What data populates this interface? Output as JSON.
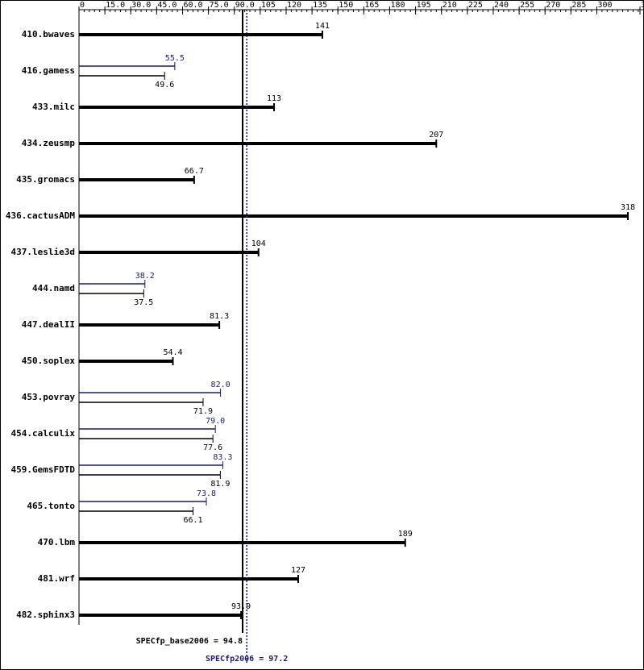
{
  "chart_data": {
    "type": "bar",
    "orientation": "horizontal",
    "categories": [
      "410.bwaves",
      "416.gamess",
      "433.milc",
      "434.zeusmp",
      "435.gromacs",
      "436.cactusADM",
      "437.leslie3d",
      "444.namd",
      "447.dealII",
      "450.soplex",
      "453.povray",
      "454.calculix",
      "459.GemsFDTD",
      "465.tonto",
      "470.lbm",
      "481.wrf",
      "482.sphinx3"
    ],
    "series": [
      {
        "name": "SPECfp2006",
        "color": "#191970",
        "values": [
          null,
          55.5,
          null,
          null,
          null,
          null,
          null,
          38.2,
          null,
          null,
          82,
          79,
          83.3,
          73.8,
          null,
          null,
          null
        ],
        "value_labels": [
          null,
          "55.5",
          null,
          null,
          null,
          null,
          null,
          "38.2",
          null,
          null,
          "82.0",
          "79.0",
          "83.3",
          "73.8",
          null,
          null,
          null
        ]
      },
      {
        "name": "SPECfp_base2006",
        "color": "#000000",
        "values": [
          141,
          49.6,
          113,
          207,
          66.7,
          318,
          104,
          37.5,
          81.3,
          54.4,
          71.9,
          77.6,
          81.9,
          66.1,
          189,
          127,
          93.9
        ]
      }
    ],
    "xlim": [
      0,
      325
    ],
    "xticks": [
      0,
      {
        "value": 15,
        "label": "15.0"
      },
      {
        "value": 30,
        "label": "30.0"
      },
      {
        "value": 45,
        "label": "45.0"
      },
      {
        "value": 60,
        "label": "60.0"
      },
      {
        "value": 75,
        "label": "75.0"
      },
      {
        "value": 90,
        "label": "90.0"
      },
      105,
      120,
      135,
      150,
      165,
      180,
      195,
      210,
      225,
      240,
      255,
      270,
      285,
      300,
      325
    ],
    "reference_lines": [
      {
        "label": "SPECfp_base2006 = 94.8",
        "value": 94.8,
        "color": "#000000",
        "style": "solid"
      },
      {
        "label": "SPECfp2006 = 97.2",
        "value": 97.2,
        "color": "#191970",
        "style": "dotted"
      }
    ]
  }
}
